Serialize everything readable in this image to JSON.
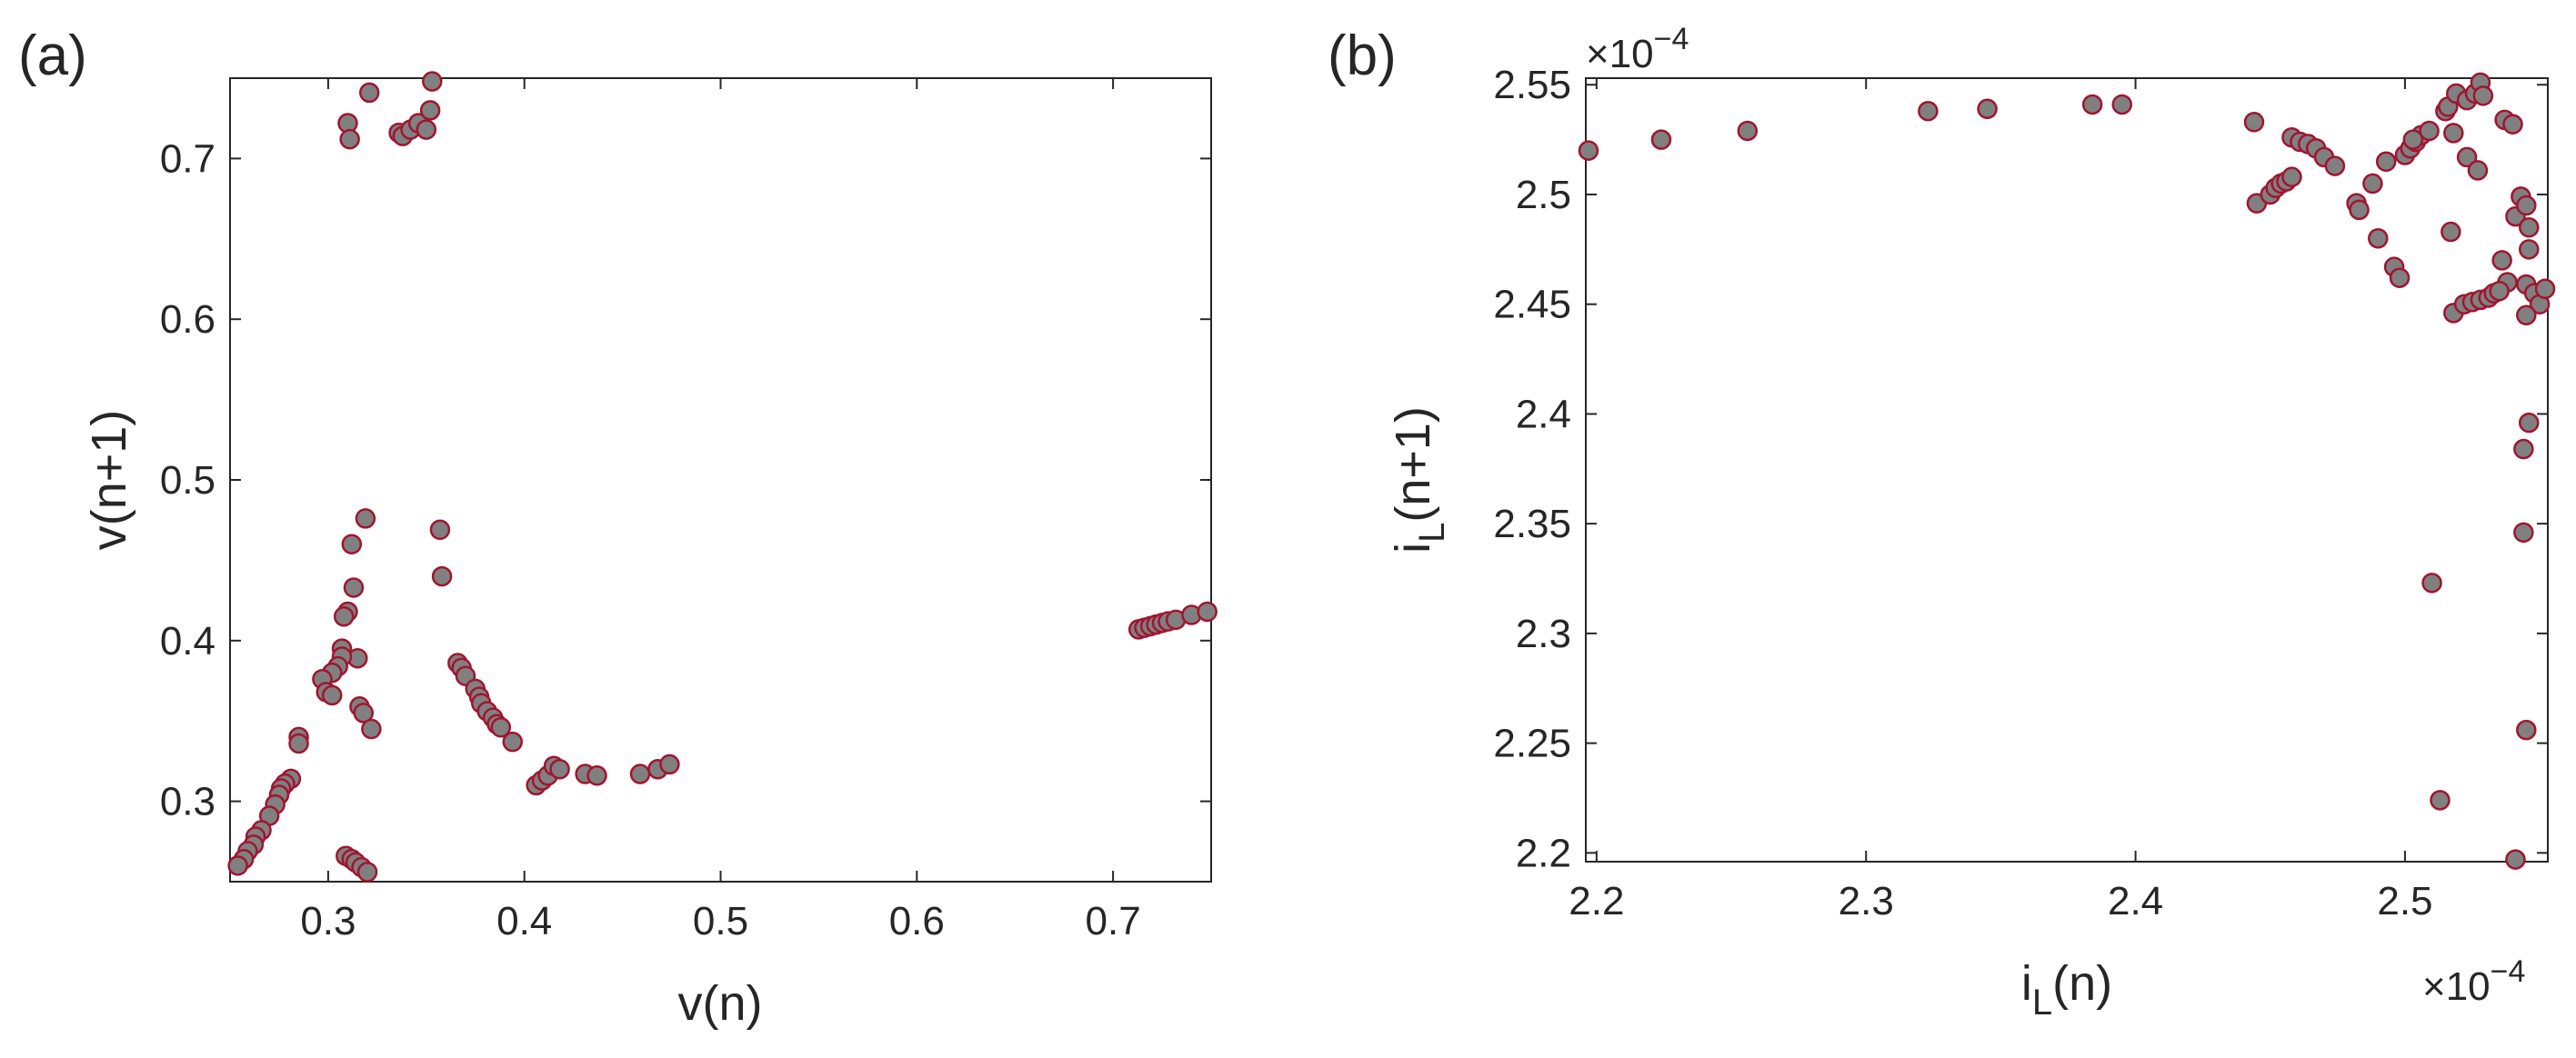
{
  "chart_data": [
    {
      "panel_label": "(a)",
      "type": "scatter",
      "xlabel": "v(n)",
      "ylabel": "v(n+1)",
      "xlim": [
        0.25,
        0.75
      ],
      "ylim": [
        0.25,
        0.75
      ],
      "xticks": [
        "0.3",
        "0.4",
        "0.5",
        "0.6",
        "0.7"
      ],
      "yticks": [
        "0.3",
        "0.4",
        "0.5",
        "0.6",
        "0.7"
      ],
      "xtick_values": [
        0.3,
        0.4,
        0.5,
        0.6,
        0.7
      ],
      "ytick_values": [
        0.3,
        0.4,
        0.5,
        0.6,
        0.7
      ],
      "grid": false,
      "marker_face": "#808080",
      "marker_edge": "#A2142F",
      "points": [
        [
          0.31,
          0.722
        ],
        [
          0.311,
          0.712
        ],
        [
          0.321,
          0.741
        ],
        [
          0.336,
          0.716
        ],
        [
          0.338,
          0.714
        ],
        [
          0.342,
          0.718
        ],
        [
          0.346,
          0.722
        ],
        [
          0.35,
          0.718
        ],
        [
          0.352,
          0.73
        ],
        [
          0.353,
          0.748
        ],
        [
          0.357,
          0.469
        ],
        [
          0.358,
          0.44
        ],
        [
          0.319,
          0.476
        ],
        [
          0.312,
          0.46
        ],
        [
          0.313,
          0.433
        ],
        [
          0.31,
          0.418
        ],
        [
          0.308,
          0.415
        ],
        [
          0.315,
          0.389
        ],
        [
          0.307,
          0.395
        ],
        [
          0.307,
          0.39
        ],
        [
          0.305,
          0.384
        ],
        [
          0.302,
          0.38
        ],
        [
          0.297,
          0.376
        ],
        [
          0.299,
          0.368
        ],
        [
          0.302,
          0.366
        ],
        [
          0.316,
          0.359
        ],
        [
          0.318,
          0.355
        ],
        [
          0.322,
          0.345
        ],
        [
          0.285,
          0.34
        ],
        [
          0.285,
          0.336
        ],
        [
          0.281,
          0.314
        ],
        [
          0.278,
          0.311
        ],
        [
          0.276,
          0.308
        ],
        [
          0.275,
          0.304
        ],
        [
          0.273,
          0.298
        ],
        [
          0.27,
          0.291
        ],
        [
          0.266,
          0.282
        ],
        [
          0.263,
          0.278
        ],
        [
          0.262,
          0.273
        ],
        [
          0.259,
          0.269
        ],
        [
          0.257,
          0.264
        ],
        [
          0.254,
          0.26
        ],
        [
          0.309,
          0.266
        ],
        [
          0.312,
          0.264
        ],
        [
          0.314,
          0.262
        ],
        [
          0.317,
          0.259
        ],
        [
          0.32,
          0.256
        ],
        [
          0.366,
          0.386
        ],
        [
          0.368,
          0.383
        ],
        [
          0.37,
          0.378
        ],
        [
          0.375,
          0.37
        ],
        [
          0.377,
          0.365
        ],
        [
          0.378,
          0.361
        ],
        [
          0.381,
          0.356
        ],
        [
          0.384,
          0.352
        ],
        [
          0.386,
          0.348
        ],
        [
          0.388,
          0.346
        ],
        [
          0.394,
          0.337
        ],
        [
          0.406,
          0.31
        ],
        [
          0.409,
          0.313
        ],
        [
          0.412,
          0.316
        ],
        [
          0.415,
          0.322
        ],
        [
          0.418,
          0.32
        ],
        [
          0.431,
          0.317
        ],
        [
          0.437,
          0.316
        ],
        [
          0.459,
          0.317
        ],
        [
          0.468,
          0.32
        ],
        [
          0.474,
          0.323
        ],
        [
          0.713,
          0.407
        ],
        [
          0.716,
          0.408
        ],
        [
          0.719,
          0.409
        ],
        [
          0.722,
          0.41
        ],
        [
          0.725,
          0.411
        ],
        [
          0.728,
          0.412
        ],
        [
          0.732,
          0.413
        ],
        [
          0.74,
          0.416
        ],
        [
          0.748,
          0.418
        ]
      ]
    },
    {
      "panel_label": "(b)",
      "type": "scatter",
      "xlabel": "i",
      "xlabel_sub": "L",
      "xlabel_rest": "(n)",
      "ylabel": "i",
      "ylabel_sub": "L",
      "ylabel_rest": "(n+1)",
      "xlim": [
        2.196,
        2.553
      ],
      "ylim": [
        2.196,
        2.553
      ],
      "xticks": [
        "2.2",
        "2.3",
        "2.4",
        "2.5"
      ],
      "yticks": [
        "2.2",
        "2.25",
        "2.3",
        "2.35",
        "2.4",
        "2.45",
        "2.5",
        "2.55"
      ],
      "xtick_values": [
        2.2,
        2.3,
        2.4,
        2.5
      ],
      "ytick_values": [
        2.2,
        2.25,
        2.3,
        2.35,
        2.4,
        2.45,
        2.5,
        2.55
      ],
      "x_multiplier": "×10",
      "x_exponent": "−4",
      "y_multiplier": "×10",
      "y_exponent": "−4",
      "grid": false,
      "marker_face": "#808080",
      "marker_edge": "#A2142F",
      "points": [
        [
          2.197,
          2.52
        ],
        [
          2.224,
          2.525
        ],
        [
          2.256,
          2.529
        ],
        [
          2.323,
          2.538
        ],
        [
          2.345,
          2.539
        ],
        [
          2.384,
          2.541
        ],
        [
          2.395,
          2.541
        ],
        [
          2.444,
          2.533
        ],
        [
          2.458,
          2.526
        ],
        [
          2.461,
          2.524
        ],
        [
          2.464,
          2.523
        ],
        [
          2.467,
          2.521
        ],
        [
          2.47,
          2.517
        ],
        [
          2.474,
          2.513
        ],
        [
          2.445,
          2.496
        ],
        [
          2.45,
          2.5
        ],
        [
          2.452,
          2.503
        ],
        [
          2.454,
          2.505
        ],
        [
          2.456,
          2.506
        ],
        [
          2.458,
          2.508
        ],
        [
          2.482,
          2.496
        ],
        [
          2.483,
          2.493
        ],
        [
          2.488,
          2.505
        ],
        [
          2.493,
          2.515
        ],
        [
          2.49,
          2.48
        ],
        [
          2.496,
          2.467
        ],
        [
          2.498,
          2.462
        ],
        [
          2.5,
          2.518
        ],
        [
          2.502,
          2.521
        ],
        [
          2.504,
          2.524
        ],
        [
          2.506,
          2.527
        ],
        [
          2.509,
          2.529
        ],
        [
          2.503,
          2.525
        ],
        [
          2.515,
          2.538
        ],
        [
          2.516,
          2.54
        ],
        [
          2.519,
          2.546
        ],
        [
          2.523,
          2.543
        ],
        [
          2.526,
          2.546
        ],
        [
          2.528,
          2.551
        ],
        [
          2.529,
          2.545
        ],
        [
          2.537,
          2.534
        ],
        [
          2.54,
          2.532
        ],
        [
          2.518,
          2.528
        ],
        [
          2.523,
          2.517
        ],
        [
          2.527,
          2.511
        ],
        [
          2.517,
          2.483
        ],
        [
          2.541,
          2.49
        ],
        [
          2.543,
          2.499
        ],
        [
          2.545,
          2.495
        ],
        [
          2.546,
          2.485
        ],
        [
          2.546,
          2.475
        ],
        [
          2.536,
          2.47
        ],
        [
          2.538,
          2.46
        ],
        [
          2.545,
          2.459
        ],
        [
          2.548,
          2.455
        ],
        [
          2.55,
          2.45
        ],
        [
          2.552,
          2.457
        ],
        [
          2.545,
          2.445
        ],
        [
          2.518,
          2.446
        ],
        [
          2.522,
          2.45
        ],
        [
          2.525,
          2.451
        ],
        [
          2.528,
          2.452
        ],
        [
          2.531,
          2.453
        ],
        [
          2.533,
          2.455
        ],
        [
          2.535,
          2.456
        ],
        [
          2.546,
          2.396
        ],
        [
          2.544,
          2.384
        ],
        [
          2.544,
          2.346
        ],
        [
          2.51,
          2.323
        ],
        [
          2.545,
          2.256
        ],
        [
          2.513,
          2.224
        ],
        [
          2.541,
          2.197
        ]
      ]
    }
  ]
}
